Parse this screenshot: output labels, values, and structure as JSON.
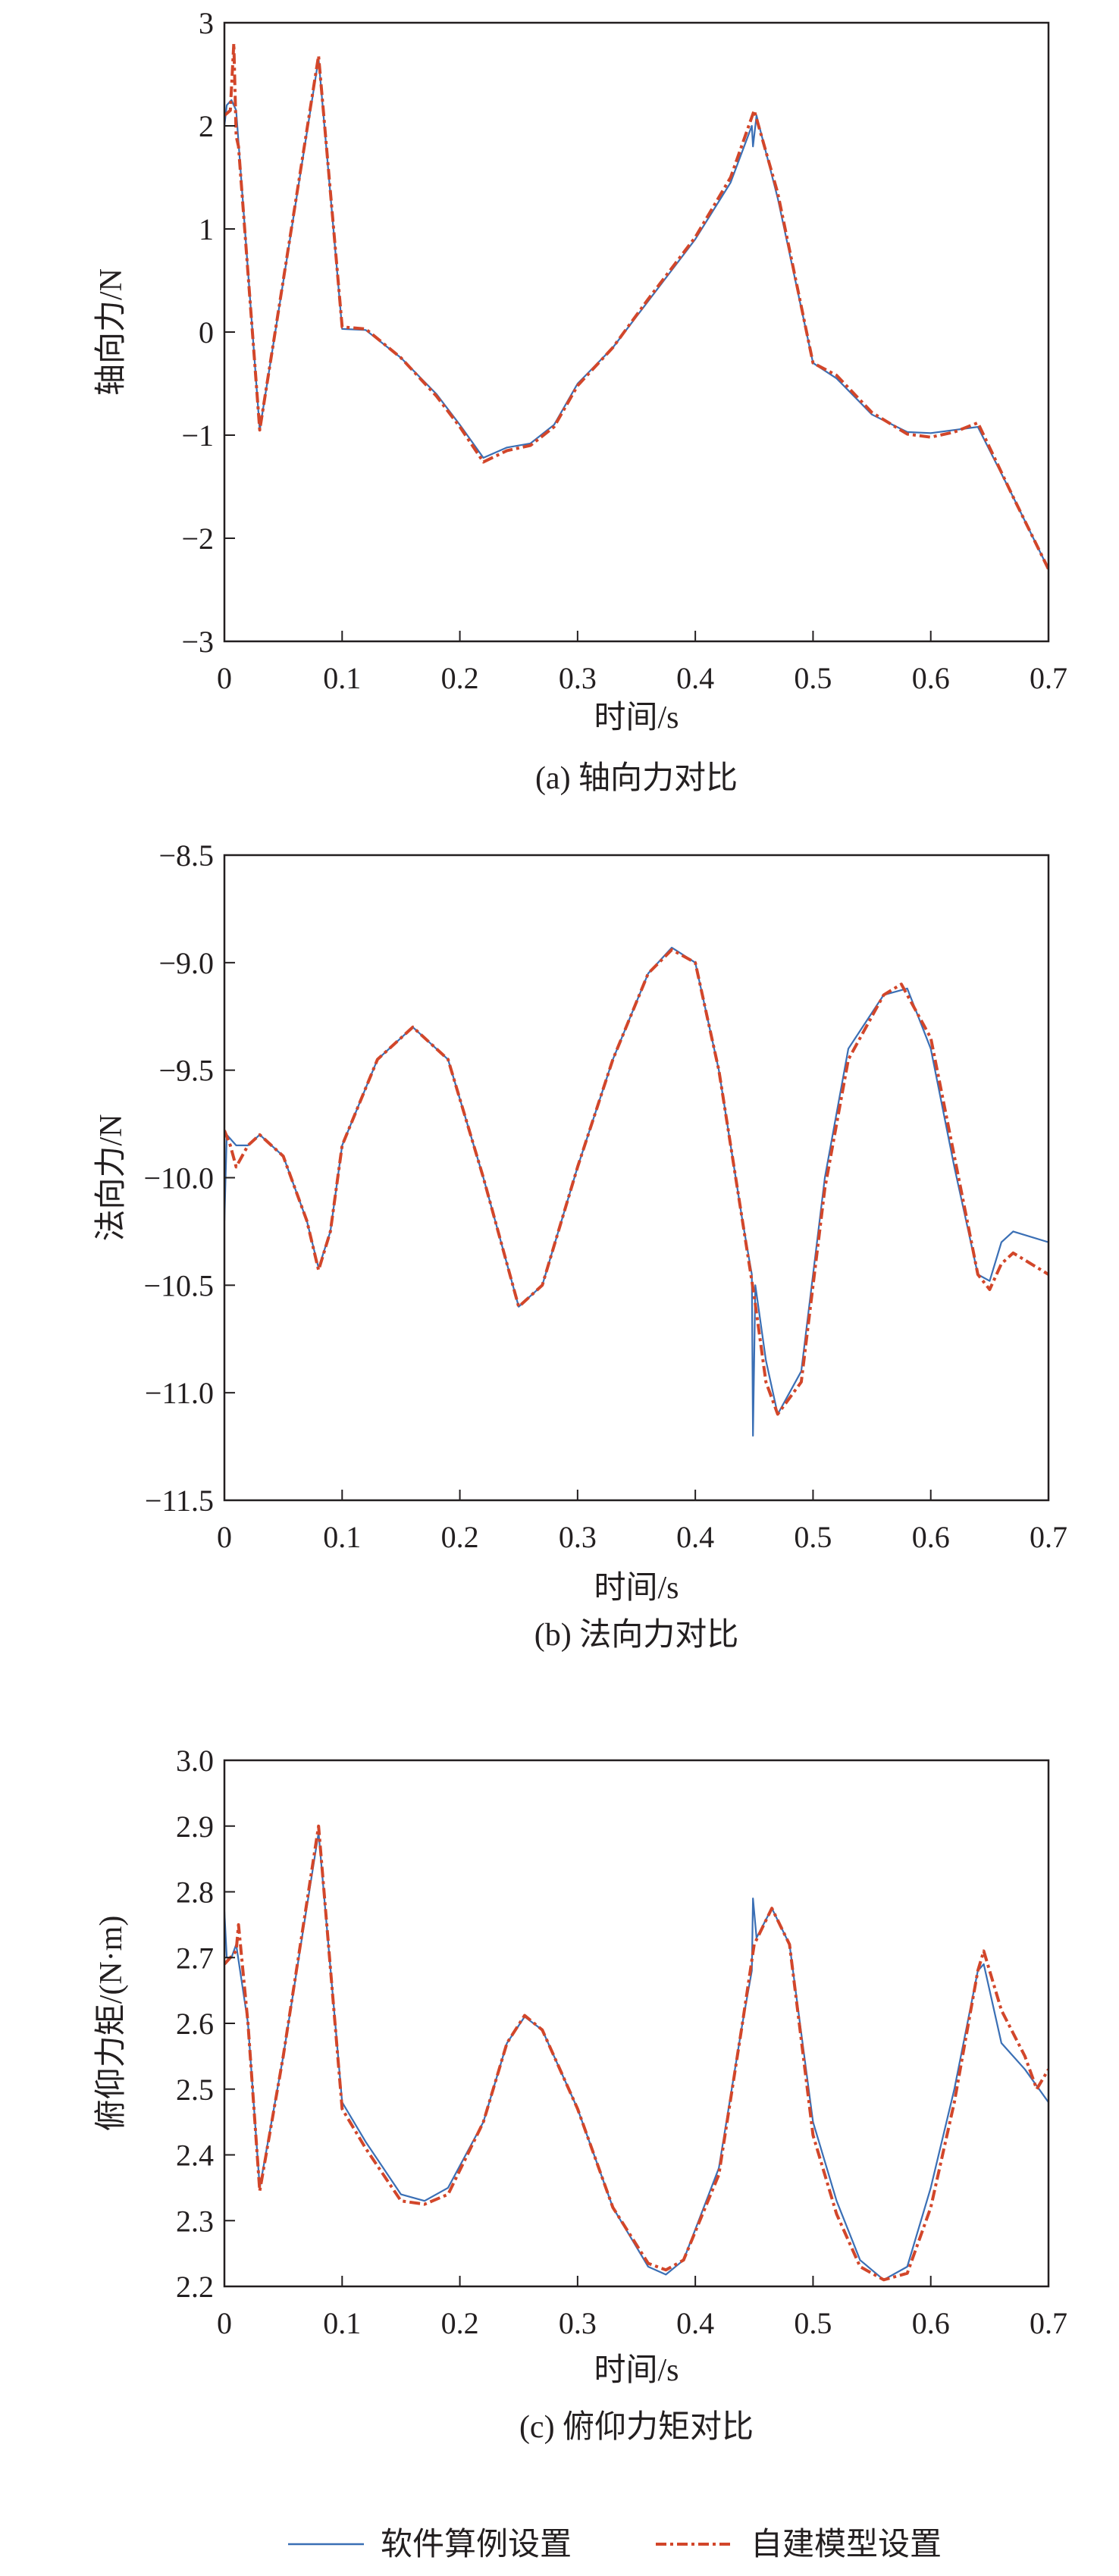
{
  "colors": {
    "software": "#3a6fb5",
    "custom": "#d2462a",
    "axis": "#231f20"
  },
  "legend": {
    "position": "bottom-center",
    "items": [
      "软件算例设置",
      "自建模型设置"
    ]
  },
  "chart_data": [
    {
      "type": "line",
      "caption": "(a) 轴向力对比",
      "xlabel": "时间/s",
      "ylabel": "轴向力/N",
      "xlim": [
        0,
        0.7
      ],
      "ylim": [
        -3,
        3
      ],
      "xticks": [
        "0",
        "0.1",
        "0.2",
        "0.3",
        "0.4",
        "0.5",
        "0.6",
        "0.7"
      ],
      "yticks": [
        "−3",
        "−2",
        "−1",
        "0",
        "1",
        "2",
        "3"
      ],
      "series": [
        {
          "name": "软件算例设置",
          "x": [
            0,
            0.002,
            0.006,
            0.01,
            0.03,
            0.08,
            0.1,
            0.12,
            0.15,
            0.18,
            0.2,
            0.22,
            0.24,
            0.26,
            0.28,
            0.3,
            0.33,
            0.36,
            0.4,
            0.43,
            0.448,
            0.449,
            0.452,
            0.47,
            0.5,
            0.52,
            0.55,
            0.58,
            0.6,
            0.62,
            0.64,
            0.67,
            0.7
          ],
          "y": [
            2.0,
            2.2,
            2.25,
            2.15,
            -0.95,
            2.65,
            0.03,
            0.02,
            -0.25,
            -0.6,
            -0.9,
            -1.22,
            -1.12,
            -1.08,
            -0.9,
            -0.5,
            -0.15,
            0.3,
            0.9,
            1.45,
            2.0,
            1.8,
            2.1,
            1.3,
            -0.3,
            -0.45,
            -0.8,
            -0.97,
            -0.98,
            -0.95,
            -0.92,
            -1.6,
            -2.3
          ]
        },
        {
          "name": "自建模型设置",
          "x": [
            0,
            0.005,
            0.008,
            0.01,
            0.012,
            0.03,
            0.08,
            0.1,
            0.12,
            0.15,
            0.18,
            0.2,
            0.22,
            0.24,
            0.26,
            0.28,
            0.3,
            0.33,
            0.36,
            0.4,
            0.43,
            0.45,
            0.47,
            0.5,
            0.52,
            0.55,
            0.58,
            0.6,
            0.62,
            0.64,
            0.67,
            0.7
          ],
          "y": [
            2.1,
            2.15,
            2.8,
            1.9,
            1.8,
            -0.95,
            2.68,
            0.05,
            0.03,
            -0.25,
            -0.62,
            -0.92,
            -1.26,
            -1.15,
            -1.1,
            -0.92,
            -0.52,
            -0.15,
            0.32,
            0.92,
            1.5,
            2.15,
            1.35,
            -0.3,
            -0.42,
            -0.78,
            -0.99,
            -1.02,
            -0.97,
            -0.88,
            -1.6,
            -2.3
          ]
        }
      ]
    },
    {
      "type": "line",
      "caption": "(b) 法向力对比",
      "xlabel": "时间/s",
      "ylabel": "法向力/N",
      "xlim": [
        0,
        0.7
      ],
      "ylim": [
        -11.5,
        -8.5
      ],
      "xticks": [
        "0",
        "0.1",
        "0.2",
        "0.3",
        "0.4",
        "0.5",
        "0.6",
        "0.7"
      ],
      "yticks": [
        "−11.5",
        "−11.0",
        "−10.5",
        "−10.0",
        "−9.5",
        "−9.0",
        "−8.5"
      ],
      "series": [
        {
          "name": "软件算例设置",
          "x": [
            0,
            0.002,
            0.01,
            0.02,
            0.03,
            0.05,
            0.07,
            0.08,
            0.09,
            0.1,
            0.13,
            0.16,
            0.19,
            0.22,
            0.25,
            0.27,
            0.3,
            0.33,
            0.36,
            0.38,
            0.4,
            0.42,
            0.44,
            0.448,
            0.449,
            0.451,
            0.46,
            0.47,
            0.49,
            0.51,
            0.53,
            0.56,
            0.58,
            0.6,
            0.62,
            0.64,
            0.65,
            0.66,
            0.67,
            0.7
          ],
          "y": [
            -10.2,
            -9.8,
            -9.85,
            -9.85,
            -9.8,
            -9.9,
            -10.2,
            -10.42,
            -10.25,
            -9.85,
            -9.45,
            -9.3,
            -9.45,
            -10.0,
            -10.6,
            -10.5,
            -9.95,
            -9.45,
            -9.05,
            -8.93,
            -9.0,
            -9.5,
            -10.2,
            -10.45,
            -11.2,
            -10.5,
            -10.85,
            -11.1,
            -10.9,
            -10.0,
            -9.4,
            -9.15,
            -9.12,
            -9.4,
            -9.95,
            -10.45,
            -10.48,
            -10.3,
            -10.25,
            -10.3
          ]
        },
        {
          "name": "自建模型设置",
          "x": [
            0,
            0.005,
            0.01,
            0.015,
            0.02,
            0.03,
            0.05,
            0.07,
            0.08,
            0.09,
            0.1,
            0.13,
            0.16,
            0.19,
            0.22,
            0.25,
            0.27,
            0.3,
            0.33,
            0.36,
            0.38,
            0.4,
            0.42,
            0.44,
            0.45,
            0.46,
            0.47,
            0.49,
            0.51,
            0.53,
            0.56,
            0.575,
            0.6,
            0.62,
            0.64,
            0.65,
            0.66,
            0.67,
            0.7
          ],
          "y": [
            -9.78,
            -9.85,
            -9.95,
            -9.9,
            -9.85,
            -9.8,
            -9.9,
            -10.2,
            -10.43,
            -10.25,
            -9.85,
            -9.45,
            -9.3,
            -9.45,
            -10.0,
            -10.6,
            -10.5,
            -9.95,
            -9.45,
            -9.05,
            -8.94,
            -9.0,
            -9.5,
            -10.2,
            -10.55,
            -10.95,
            -11.1,
            -10.95,
            -10.05,
            -9.45,
            -9.15,
            -9.1,
            -9.35,
            -9.9,
            -10.45,
            -10.52,
            -10.4,
            -10.35,
            -10.45
          ]
        }
      ]
    },
    {
      "type": "line",
      "caption": "(c) 俯仰力矩对比",
      "xlabel": "时间/s",
      "ylabel": "俯仰力矩/(N·m)",
      "xlim": [
        0,
        0.7
      ],
      "ylim": [
        2.2,
        3.0
      ],
      "xticks": [
        "0",
        "0.1",
        "0.2",
        "0.3",
        "0.4",
        "0.5",
        "0.6",
        "0.7"
      ],
      "yticks": [
        "2.2",
        "2.3",
        "2.4",
        "2.5",
        "2.6",
        "2.7",
        "2.8",
        "2.9",
        "3.0"
      ],
      "series": [
        {
          "name": "软件算例设置",
          "x": [
            0,
            0.002,
            0.006,
            0.01,
            0.02,
            0.03,
            0.05,
            0.08,
            0.1,
            0.12,
            0.15,
            0.17,
            0.19,
            0.22,
            0.24,
            0.255,
            0.27,
            0.3,
            0.33,
            0.36,
            0.375,
            0.39,
            0.42,
            0.44,
            0.448,
            0.449,
            0.452,
            0.465,
            0.48,
            0.5,
            0.52,
            0.54,
            0.56,
            0.58,
            0.6,
            0.62,
            0.64,
            0.645,
            0.66,
            0.68,
            0.7
          ],
          "y": [
            2.77,
            2.7,
            2.7,
            2.72,
            2.6,
            2.35,
            2.55,
            2.89,
            2.48,
            2.42,
            2.34,
            2.33,
            2.35,
            2.45,
            2.57,
            2.61,
            2.59,
            2.47,
            2.32,
            2.23,
            2.218,
            2.24,
            2.38,
            2.6,
            2.68,
            2.79,
            2.73,
            2.775,
            2.72,
            2.45,
            2.33,
            2.24,
            2.21,
            2.23,
            2.35,
            2.5,
            2.68,
            2.69,
            2.57,
            2.53,
            2.48
          ]
        },
        {
          "name": "自建模型设置",
          "x": [
            0,
            0.005,
            0.01,
            0.012,
            0.02,
            0.03,
            0.05,
            0.08,
            0.1,
            0.12,
            0.15,
            0.17,
            0.19,
            0.22,
            0.24,
            0.255,
            0.27,
            0.3,
            0.33,
            0.36,
            0.375,
            0.39,
            0.42,
            0.44,
            0.45,
            0.465,
            0.48,
            0.5,
            0.52,
            0.54,
            0.56,
            0.58,
            0.6,
            0.62,
            0.64,
            0.645,
            0.66,
            0.68,
            0.69,
            0.7
          ],
          "y": [
            2.69,
            2.7,
            2.71,
            2.75,
            2.6,
            2.345,
            2.55,
            2.9,
            2.47,
            2.41,
            2.33,
            2.325,
            2.34,
            2.45,
            2.57,
            2.612,
            2.59,
            2.47,
            2.32,
            2.235,
            2.225,
            2.24,
            2.37,
            2.6,
            2.72,
            2.775,
            2.72,
            2.43,
            2.31,
            2.23,
            2.21,
            2.22,
            2.32,
            2.48,
            2.68,
            2.71,
            2.62,
            2.55,
            2.5,
            2.53
          ]
        }
      ]
    }
  ]
}
